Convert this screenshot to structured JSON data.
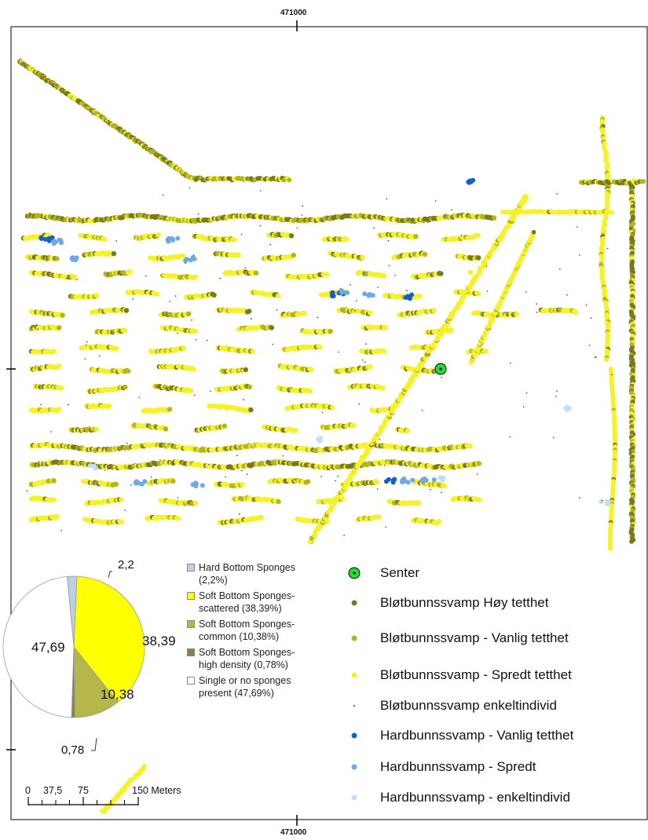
{
  "map": {
    "coordinate_top": "471000",
    "coordinate_bottom": "471000",
    "colors": {
      "high_density": "#7a7a1a",
      "common": "#b5b51e",
      "scattered": "#f5f22a",
      "single": "#333333",
      "hard_common": "#1560c8",
      "hard_scattered": "#6fa8e6",
      "hard_single": "#bfe0f7",
      "center": "#22dd33"
    }
  },
  "pie": {
    "slices": [
      {
        "key": "hard",
        "value": 2.2,
        "label": "2,2",
        "color": "#bccfe6"
      },
      {
        "key": "scattered",
        "value": 38.39,
        "label": "38,39",
        "color": "#ffff00"
      },
      {
        "key": "common",
        "value": 10.38,
        "label": "10,38",
        "color": "#b6b74a"
      },
      {
        "key": "high",
        "value": 0.78,
        "label": "0,78",
        "color": "#8a7f55"
      },
      {
        "key": "single",
        "value": 47.69,
        "label": "47,69",
        "color": "#ffffff"
      }
    ],
    "legend": [
      {
        "line1": "Hard Bottom Sponges",
        "line2": "(2,2%)",
        "color": "#bccfe6"
      },
      {
        "line1": "Soft Bottom Sponges-",
        "line2": "scattered (38,39%)",
        "color": "#ffff00"
      },
      {
        "line1": "Soft Bottom Sponges-",
        "line2": "common (10,38%)",
        "color": "#b6b74a"
      },
      {
        "line1": "Soft Bottom Sponges-",
        "line2": "high density (0,78%)",
        "color": "#8a7f55"
      },
      {
        "line1": "Single or no sponges",
        "line2": "present (47,69%)",
        "color": "#ffffff"
      }
    ]
  },
  "legend": {
    "center": "Senter",
    "items": [
      {
        "label": "Bløtbunnssvamp Høy tetthet",
        "color": "#7a7a1a",
        "kind": "high_density"
      },
      {
        "label": "Bløtbunnssvamp - Vanlig tetthet",
        "color": "#b5b51e",
        "kind": "common"
      },
      {
        "label": "Bløtbunnssvamp - Spredt tetthet",
        "color": "#f5f22a",
        "kind": "scattered"
      },
      {
        "label": "Bløtbunnssvamp enkeltindivid",
        "color": "#333333",
        "kind": "single"
      },
      {
        "label": "Hardbunnssvamp - Vanlig tetthet",
        "color": "#1560c8",
        "kind": "hard_common"
      },
      {
        "label": "Hardbunnssvamp - Spredt",
        "color": "#6fa8e6",
        "kind": "hard_scattered"
      },
      {
        "label": "Hardbunnssvamp - enkeltindivid",
        "color": "#bfe0f7",
        "kind": "hard_single"
      }
    ]
  },
  "scalebar": {
    "labels": [
      "0",
      "37,5",
      "75",
      "150 Meters"
    ]
  }
}
